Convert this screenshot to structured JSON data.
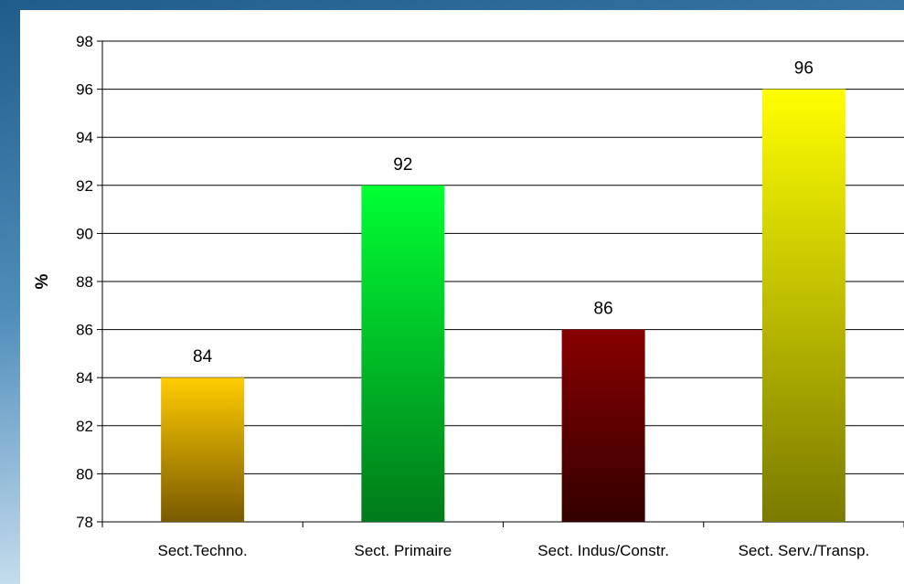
{
  "chart_data": {
    "type": "bar",
    "title": "",
    "xlabel": "",
    "ylabel": "%",
    "ylim": [
      78,
      98
    ],
    "yticks": [
      78,
      80,
      82,
      84,
      86,
      88,
      90,
      92,
      94,
      96,
      98
    ],
    "grid": true,
    "categories": [
      "Sect.Techno.",
      "Sect. Primaire",
      "Sect. Indus/Constr.",
      "Sect. Serv./Transp."
    ],
    "values": [
      84,
      92,
      86,
      96
    ],
    "data_labels": [
      "84",
      "92",
      "86",
      "96"
    ],
    "bar_colors": [
      {
        "top": "#FFCC00",
        "bottom": "#7A5A00"
      },
      {
        "top": "#00FF33",
        "bottom": "#007A1A"
      },
      {
        "top": "#880000",
        "bottom": "#330000"
      },
      {
        "top": "#FFFF00",
        "bottom": "#7A7A00"
      }
    ]
  },
  "theme": {
    "frame_colors": [
      "#1F5C8C",
      "#6FA8CF",
      "#CFE3F1"
    ],
    "gridline_color": "#000000"
  }
}
